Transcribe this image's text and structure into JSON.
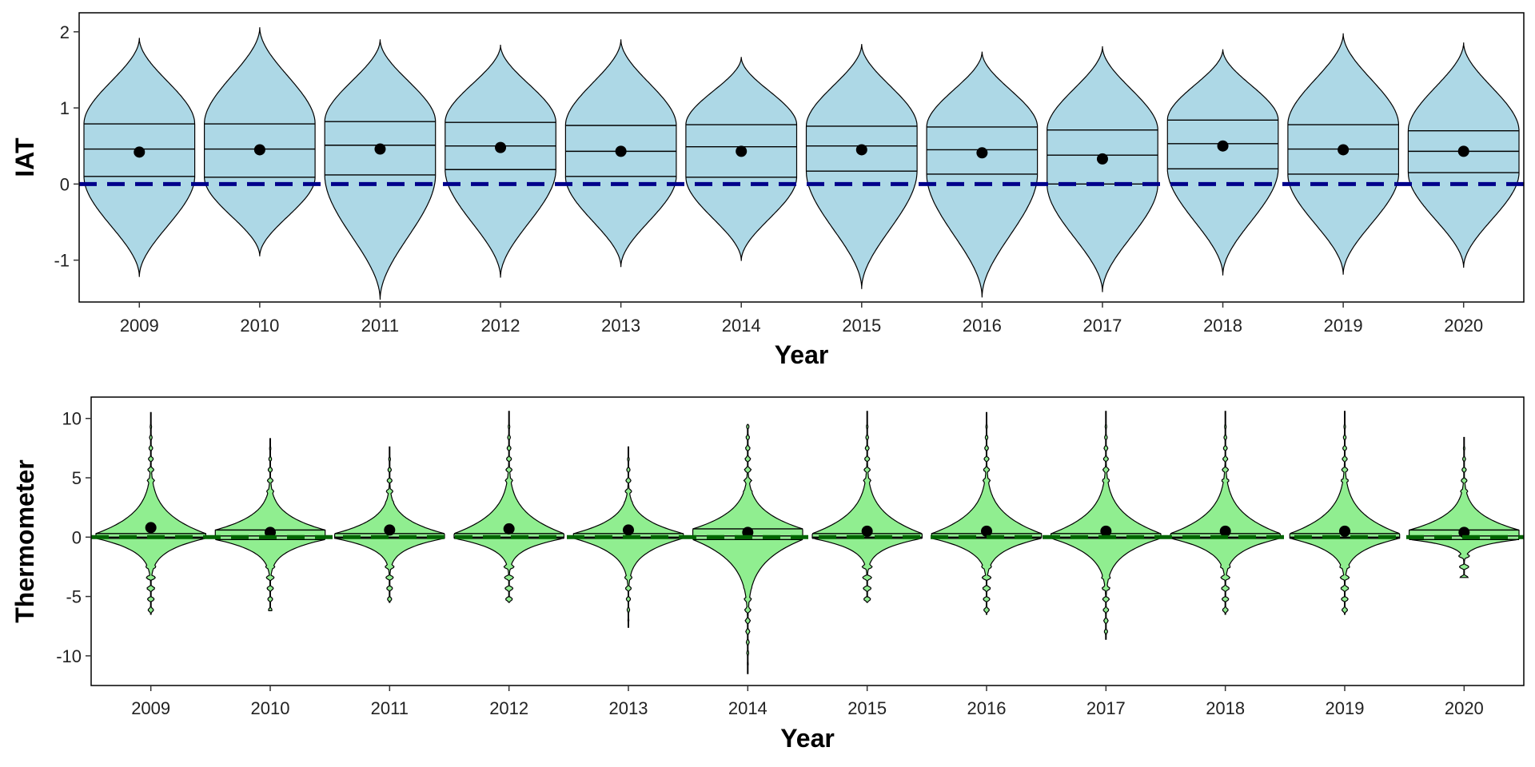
{
  "chart_data": [
    {
      "type": "violin",
      "xlabel": "Year",
      "ylabel": "IAT",
      "categories": [
        "2009",
        "2010",
        "2011",
        "2012",
        "2013",
        "2014",
        "2015",
        "2016",
        "2017",
        "2018",
        "2019",
        "2020"
      ],
      "yticks": [
        -1,
        0,
        1,
        2
      ],
      "ylim": [
        -1.55,
        2.25
      ],
      "reference_line": 0,
      "colors": {
        "fill": "#add8e6",
        "reference": "#00008b"
      },
      "series": [
        {
          "year": "2009",
          "min": -1.22,
          "q1": 0.1,
          "median": 0.46,
          "q3": 0.79,
          "max": 1.92,
          "mean": 0.42
        },
        {
          "year": "2010",
          "min": -0.95,
          "q1": 0.09,
          "median": 0.46,
          "q3": 0.79,
          "max": 2.06,
          "mean": 0.45
        },
        {
          "year": "2011",
          "min": -1.52,
          "q1": 0.12,
          "median": 0.51,
          "q3": 0.82,
          "max": 1.9,
          "mean": 0.46
        },
        {
          "year": "2012",
          "min": -1.23,
          "q1": 0.19,
          "median": 0.5,
          "q3": 0.81,
          "max": 1.83,
          "mean": 0.48
        },
        {
          "year": "2013",
          "min": -1.09,
          "q1": 0.1,
          "median": 0.43,
          "q3": 0.77,
          "max": 1.9,
          "mean": 0.43
        },
        {
          "year": "2014",
          "min": -1.01,
          "q1": 0.09,
          "median": 0.49,
          "q3": 0.78,
          "max": 1.67,
          "mean": 0.43
        },
        {
          "year": "2015",
          "min": -1.38,
          "q1": 0.17,
          "median": 0.5,
          "q3": 0.76,
          "max": 1.84,
          "mean": 0.45
        },
        {
          "year": "2016",
          "min": -1.49,
          "q1": 0.13,
          "median": 0.45,
          "q3": 0.75,
          "max": 1.74,
          "mean": 0.41
        },
        {
          "year": "2017",
          "min": -1.42,
          "q1": 0.0,
          "median": 0.38,
          "q3": 0.71,
          "max": 1.81,
          "mean": 0.33
        },
        {
          "year": "2018",
          "min": -1.2,
          "q1": 0.2,
          "median": 0.53,
          "q3": 0.84,
          "max": 1.77,
          "mean": 0.5
        },
        {
          "year": "2019",
          "min": -1.19,
          "q1": 0.13,
          "median": 0.46,
          "q3": 0.78,
          "max": 1.98,
          "mean": 0.45
        },
        {
          "year": "2020",
          "min": -1.1,
          "q1": 0.15,
          "median": 0.43,
          "q3": 0.7,
          "max": 1.86,
          "mean": 0.43
        }
      ]
    },
    {
      "type": "violin",
      "xlabel": "Year",
      "ylabel": "Thermometer",
      "categories": [
        "2009",
        "2010",
        "2011",
        "2012",
        "2013",
        "2014",
        "2015",
        "2016",
        "2017",
        "2018",
        "2019",
        "2020"
      ],
      "yticks": [
        -10,
        -5,
        0,
        5,
        10
      ],
      "ylim": [
        -12.5,
        11.8
      ],
      "reference_line": 0,
      "colors": {
        "fill": "#90ee90",
        "reference": "#006400"
      },
      "series": [
        {
          "year": "2009",
          "min": -6.5,
          "q1": -0.1,
          "median": 0.0,
          "q3": 0.3,
          "max": 10.5,
          "mean": 0.8
        },
        {
          "year": "2010",
          "min": -6.2,
          "q1": -0.2,
          "median": 0.1,
          "q3": 0.6,
          "max": 8.3,
          "mean": 0.4
        },
        {
          "year": "2011",
          "min": -5.5,
          "q1": -0.1,
          "median": 0.0,
          "q3": 0.3,
          "max": 7.6,
          "mean": 0.6
        },
        {
          "year": "2012",
          "min": -5.5,
          "q1": -0.1,
          "median": 0.0,
          "q3": 0.3,
          "max": 10.6,
          "mean": 0.7
        },
        {
          "year": "2013",
          "min": -7.6,
          "q1": -0.1,
          "median": 0.0,
          "q3": 0.3,
          "max": 7.6,
          "mean": 0.6
        },
        {
          "year": "2014",
          "min": -11.5,
          "q1": -0.2,
          "median": 0.1,
          "q3": 0.7,
          "max": 9.5,
          "mean": 0.4
        },
        {
          "year": "2015",
          "min": -5.5,
          "q1": -0.1,
          "median": 0.0,
          "q3": 0.3,
          "max": 10.6,
          "mean": 0.5
        },
        {
          "year": "2016",
          "min": -6.5,
          "q1": -0.1,
          "median": 0.0,
          "q3": 0.3,
          "max": 10.5,
          "mean": 0.5
        },
        {
          "year": "2017",
          "min": -8.6,
          "q1": -0.1,
          "median": 0.0,
          "q3": 0.3,
          "max": 10.6,
          "mean": 0.5
        },
        {
          "year": "2018",
          "min": -6.5,
          "q1": -0.1,
          "median": 0.0,
          "q3": 0.3,
          "max": 10.6,
          "mean": 0.5
        },
        {
          "year": "2019",
          "min": -6.5,
          "q1": -0.1,
          "median": 0.0,
          "q3": 0.3,
          "max": 10.6,
          "mean": 0.5
        },
        {
          "year": "2020",
          "min": -3.4,
          "q1": -0.2,
          "median": 0.1,
          "q3": 0.6,
          "max": 8.4,
          "mean": 0.4
        }
      ]
    }
  ]
}
